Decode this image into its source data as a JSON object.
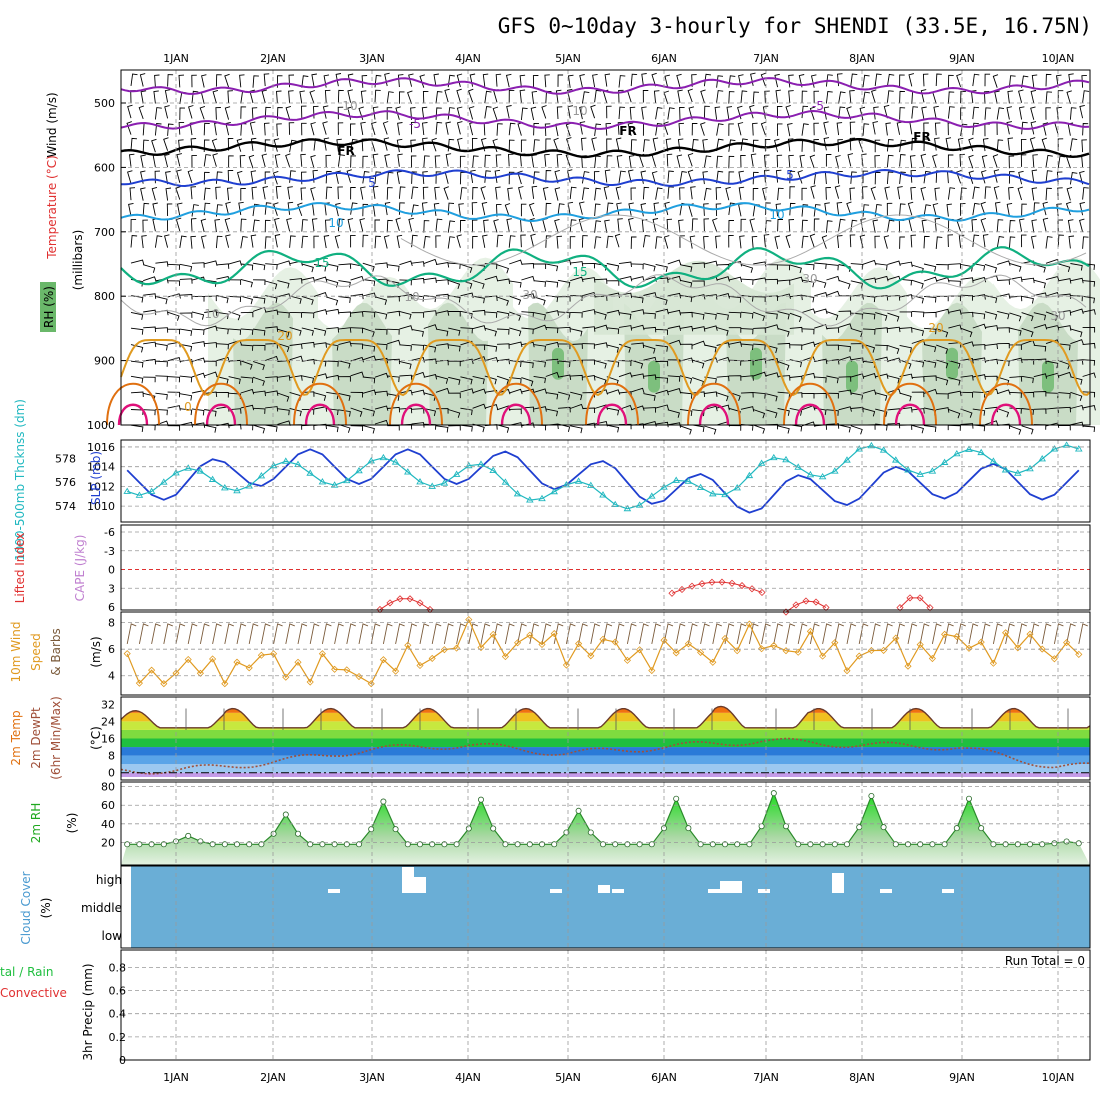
{
  "title": "GFS 0~10day 3-hourly for SHENDI (33.5E, 16.75N)",
  "date_labels": [
    "1JAN",
    "2JAN",
    "3JAN",
    "4JAN",
    "5JAN",
    "6JAN",
    "7JAN",
    "8JAN",
    "9JAN",
    "10JAN"
  ],
  "colors": {
    "purple": "#8a1fb0",
    "blue_dark": "#1f3fd0",
    "blue_mid": "#1f5fdf",
    "blue_light": "#1f9fdf",
    "teal": "#10b080",
    "orange": "#e09a20",
    "orange_dark": "#e07010",
    "magenta": "#e0107a",
    "rh_green": "#6ab86a",
    "cyan": "#20b8c0",
    "red": "#e03030",
    "cloud_blue": "#6aaed6"
  },
  "panels": {
    "upper": {
      "y_ticks": [
        "500",
        "600",
        "700",
        "800",
        "900",
        "1000"
      ],
      "labels": {
        "wind": "Wind (m/s)",
        "temperature": "Temperature (°C)",
        "rh": "RH (%)",
        "millibars": "(millibars)"
      },
      "contour_labels": [
        "-5",
        "-5",
        "FR",
        "FR",
        "FR",
        "5",
        "5",
        "10",
        "10",
        "15",
        "15",
        "20",
        "20",
        "10",
        "10",
        "10",
        "10",
        "30",
        "30",
        "30",
        "0"
      ]
    },
    "slp": {
      "y_left_ticks": [
        "574",
        "576",
        "578"
      ],
      "y_right_ticks": [
        "1010",
        "1012",
        "1014",
        "1016"
      ],
      "label_thickness": "1000-500mb Thcknss (dm)",
      "label_slp": "SLP (mb)"
    },
    "stability": {
      "y_ticks": [
        "-6",
        "-3",
        "0",
        "3",
        "6"
      ],
      "label_li": "Lifted Index",
      "label_cape": "CAPE (J/kg)"
    },
    "wind10m": {
      "y_ticks": [
        "4",
        "6",
        "8"
      ],
      "label_a": "10m Wind",
      "label_b": "Speed",
      "label_c": "& Barbs",
      "unit": "(m/s)"
    },
    "temp": {
      "y_ticks": [
        "0",
        "8",
        "16",
        "24",
        "32"
      ],
      "label_a": "2m Temp",
      "label_b": "2m DewPt",
      "label_c": "(6hr Min/Max)",
      "unit": "(°C)"
    },
    "rh": {
      "y_ticks": [
        "20",
        "40",
        "60",
        "80"
      ],
      "label": "2m RH",
      "unit": "(%)"
    },
    "cloud": {
      "levels": [
        "high",
        "middle",
        "low"
      ],
      "label": "Cloud Cover",
      "unit": "(%)"
    },
    "precip": {
      "y_ticks": [
        "0",
        "0.2",
        "0.4",
        "0.6",
        "0.8"
      ],
      "label": "3hr Precip (mm)",
      "label_total": "tal / Rain",
      "label_convective": "Convective",
      "run_total": "Run Total = 0"
    }
  },
  "chart_data": [
    {
      "type": "line",
      "title": "GFS 0~10day 3-hourly for SHENDI (33.5E, 16.75N)",
      "xlabel": "",
      "ylabel": "SLP (mb)",
      "x": [
        "1JAN",
        "2JAN",
        "3JAN",
        "4JAN",
        "5JAN",
        "6JAN",
        "7JAN",
        "8JAN",
        "9JAN",
        "10JAN"
      ],
      "series": [
        {
          "name": "SLP (mb)",
          "values": [
            1014.0,
            1015.6,
            1015.6,
            1015.6,
            1015.0,
            1013.4,
            1012.6,
            1013.6,
            1014.2,
            1014.0
          ]
        },
        {
          "name": "1000-500mb Thcknss (dm)",
          "values": [
            576.6,
            577.2,
            577.6,
            577.2,
            575.6,
            575.4,
            577.4,
            578.6,
            578.2,
            578.6
          ]
        }
      ],
      "ylim": [
        1009,
        1016.5
      ]
    },
    {
      "type": "line",
      "title": "10m Wind Speed",
      "xlabel": "",
      "ylabel": "(m/s)",
      "x": [
        "1JAN",
        "2JAN",
        "3JAN",
        "4JAN",
        "5JAN",
        "6JAN",
        "7JAN",
        "8JAN",
        "9JAN",
        "10JAN"
      ],
      "series": [
        {
          "name": "10m Wind Speed",
          "values": [
            4.2,
            5.0,
            4.0,
            6.8,
            6.2,
            5.6,
            6.6,
            5.5,
            6.4,
            6.2
          ]
        }
      ],
      "ylim": [
        3,
        8.5
      ]
    },
    {
      "type": "line",
      "title": "2m Temp",
      "xlabel": "",
      "ylabel": "(°C)",
      "x": [
        "1JAN",
        "2JAN",
        "3JAN",
        "4JAN",
        "5JAN",
        "6JAN",
        "7JAN",
        "8JAN",
        "9JAN",
        "10JAN"
      ],
      "series": [
        {
          "name": "2m Temp max",
          "values": [
            29,
            30,
            30,
            30,
            30,
            30,
            31,
            30,
            30,
            30
          ]
        },
        {
          "name": "2m DewPt",
          "values": [
            1,
            5,
            11,
            13,
            9,
            12,
            15,
            13,
            12,
            3
          ]
        }
      ],
      "ylim": [
        -2,
        34
      ]
    },
    {
      "type": "area",
      "title": "2m RH",
      "xlabel": "",
      "ylabel": "(%)",
      "x": [
        "1JAN",
        "2JAN",
        "3JAN",
        "4JAN",
        "5JAN",
        "6JAN",
        "7JAN",
        "8JAN",
        "9JAN",
        "10JAN"
      ],
      "series": [
        {
          "name": "2m RH max",
          "values": [
            27,
            50,
            64,
            66,
            54,
            67,
            73,
            70,
            67,
            21
          ]
        }
      ],
      "ylim": [
        0,
        85
      ]
    },
    {
      "type": "bar",
      "title": "3hr Precip (mm)",
      "xlabel": "",
      "ylabel": "3hr Precip (mm)",
      "categories": [
        "1JAN",
        "2JAN",
        "3JAN",
        "4JAN",
        "5JAN",
        "6JAN",
        "7JAN",
        "8JAN",
        "9JAN",
        "10JAN"
      ],
      "values": [
        0,
        0,
        0,
        0,
        0,
        0,
        0,
        0,
        0,
        0
      ],
      "ylim": [
        0,
        0.95
      ]
    }
  ]
}
